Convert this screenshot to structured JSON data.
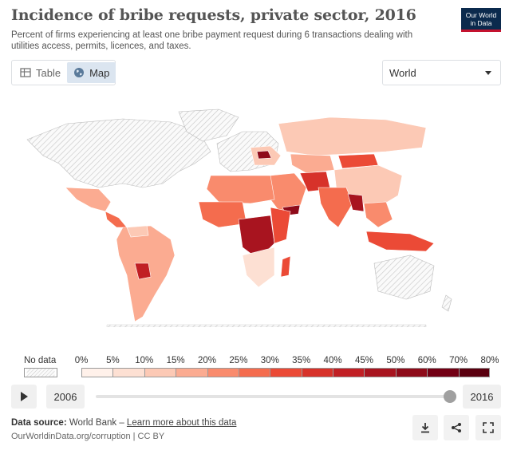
{
  "header": {
    "title": "Incidence of bribe requests, private sector, 2016",
    "subtitle": "Percent of firms experiencing at least one bribe payment request during 6 transactions dealing with utilities access, permits, licences, and taxes.",
    "logo_line1": "Our World",
    "logo_line2": "in Data"
  },
  "tabs": [
    {
      "label": "Table",
      "icon": "table-icon",
      "active": false
    },
    {
      "label": "Map",
      "icon": "globe-icon",
      "active": true
    }
  ],
  "region_select": {
    "value": "World"
  },
  "legend": {
    "no_data_label": "No data",
    "bins": [
      "0%",
      "5%",
      "10%",
      "15%",
      "20%",
      "25%",
      "30%",
      "35%",
      "40%",
      "45%",
      "50%",
      "60%",
      "70%",
      "80%"
    ],
    "colors": [
      "#fff1ea",
      "#fde0d3",
      "#fcc9b5",
      "#fbab91",
      "#f98b6d",
      "#f46c4e",
      "#eb4a36",
      "#d7322a",
      "#c11f24",
      "#a8141f",
      "#8e0b1a",
      "#730014",
      "#5a000f"
    ]
  },
  "timeline": {
    "start_year": "2006",
    "end_year": "2016",
    "position": 1.0
  },
  "footer": {
    "source_label": "Data source:",
    "source_value": "World Bank",
    "separator": "–",
    "learn_more": "Learn more about this data",
    "url": "OurWorldinData.org/corruption | CC BY"
  },
  "actions": [
    {
      "name": "download-icon"
    },
    {
      "name": "share-icon"
    },
    {
      "name": "fullscreen-icon"
    }
  ]
}
